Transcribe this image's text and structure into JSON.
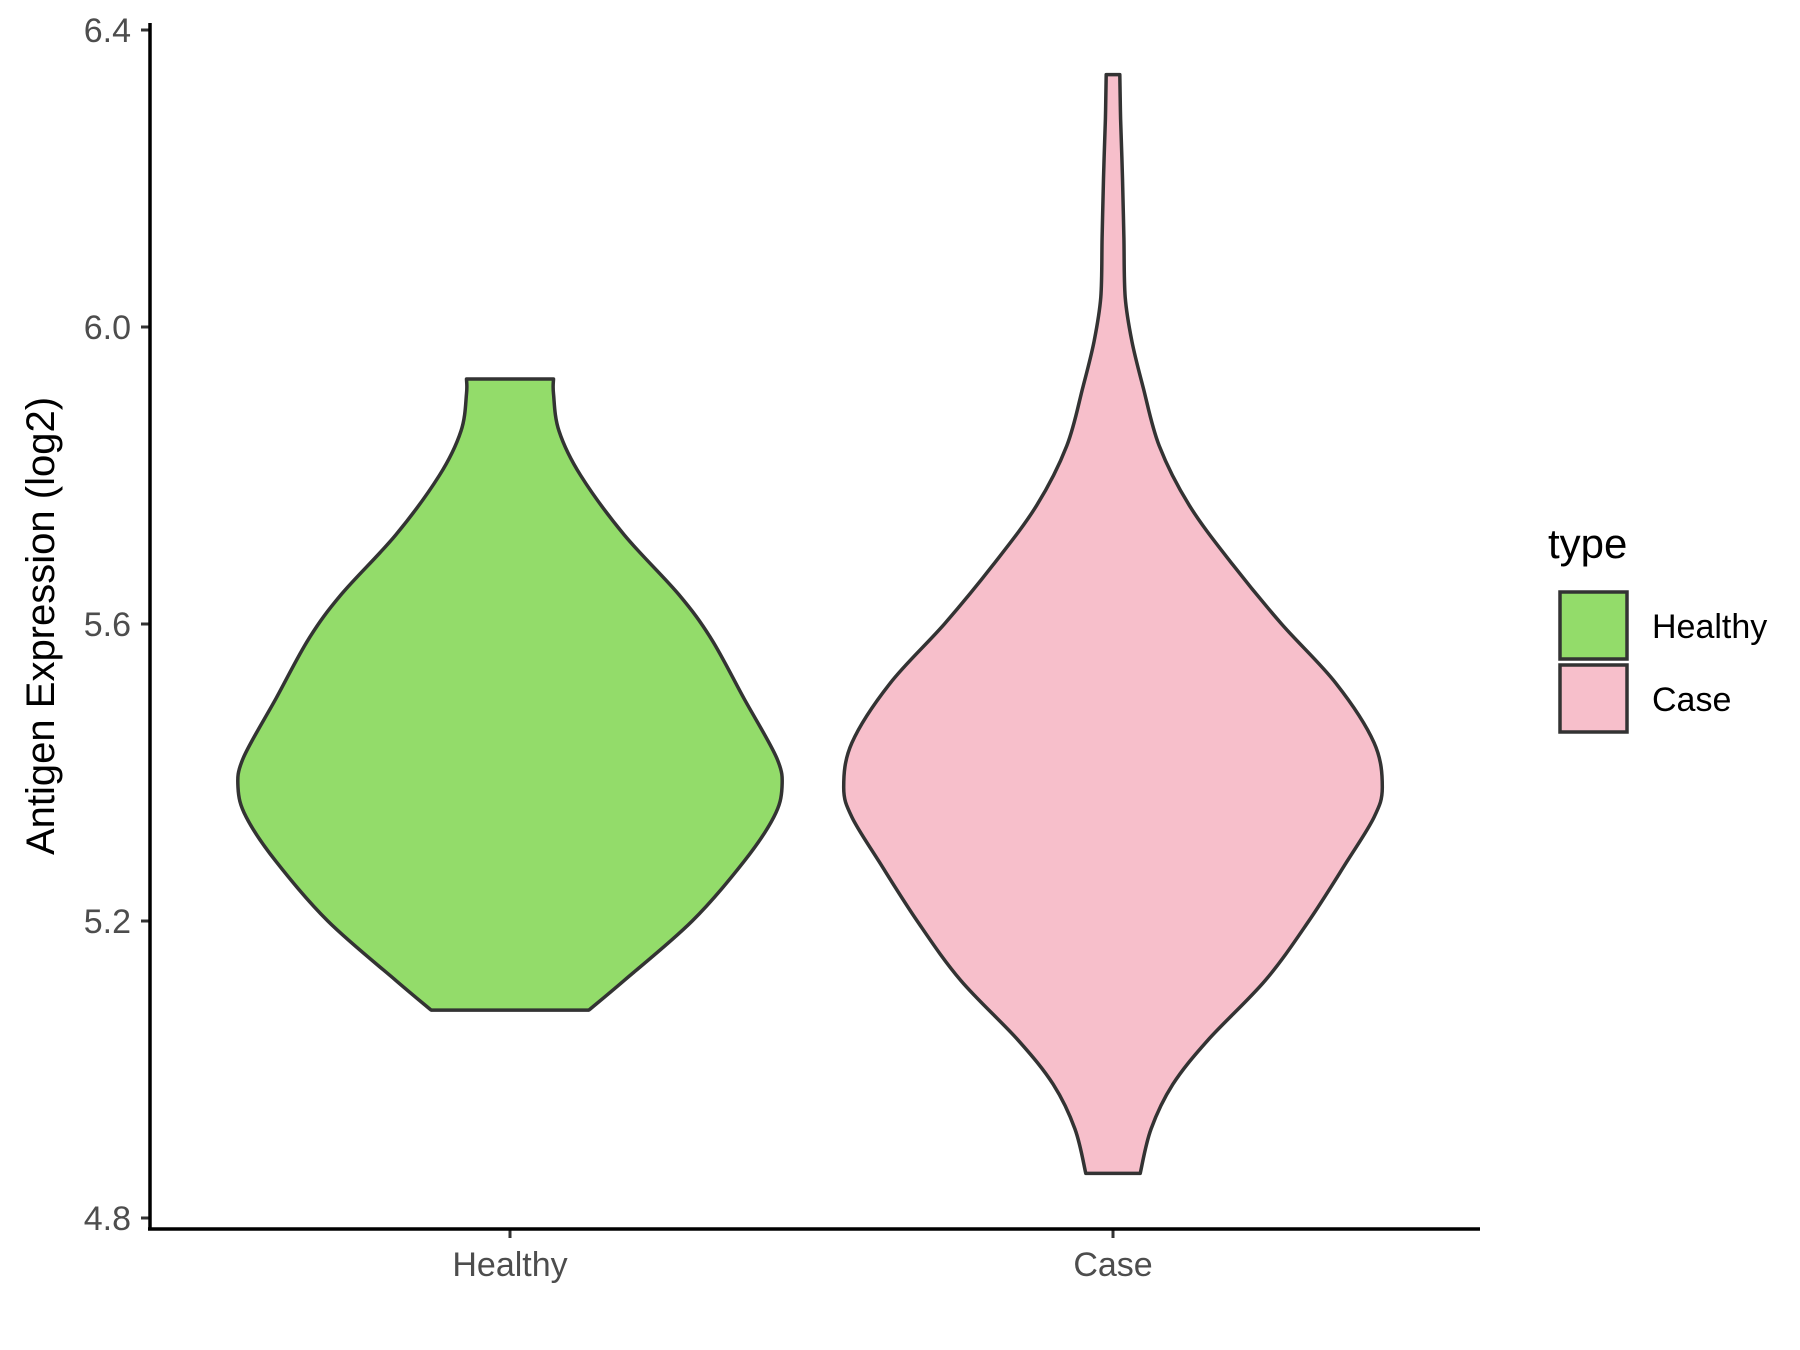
{
  "chart_data": {
    "type": "violin",
    "ylabel": "Antigen Expression (log2)",
    "xlabel": "",
    "categories": [
      "Healthy",
      "Case"
    ],
    "ylim": [
      4.8,
      6.4
    ],
    "yticks": [
      "4.8",
      "5.2",
      "5.6",
      "6.0",
      "6.4"
    ],
    "grid": false,
    "legend": {
      "title": "type",
      "position": "right",
      "items": [
        "Healthy",
        "Case"
      ]
    },
    "series": [
      {
        "category": "Healthy",
        "color": "#93DC6A",
        "ymin": 5.08,
        "ymax": 5.93,
        "density": [
          [
            5.08,
            0.29
          ],
          [
            5.12,
            0.42
          ],
          [
            5.2,
            0.67
          ],
          [
            5.28,
            0.86
          ],
          [
            5.34,
            0.97
          ],
          [
            5.38,
            1.0
          ],
          [
            5.42,
            0.98
          ],
          [
            5.5,
            0.86
          ],
          [
            5.58,
            0.74
          ],
          [
            5.64,
            0.62
          ],
          [
            5.72,
            0.42
          ],
          [
            5.8,
            0.26
          ],
          [
            5.86,
            0.18
          ],
          [
            5.91,
            0.16
          ],
          [
            5.93,
            0.16
          ]
        ]
      },
      {
        "category": "Case",
        "color": "#F7BFCB",
        "ymin": 4.86,
        "ymax": 6.34,
        "density": [
          [
            4.86,
            0.1
          ],
          [
            4.92,
            0.14
          ],
          [
            4.98,
            0.22
          ],
          [
            5.04,
            0.35
          ],
          [
            5.12,
            0.56
          ],
          [
            5.2,
            0.72
          ],
          [
            5.28,
            0.86
          ],
          [
            5.34,
            0.96
          ],
          [
            5.38,
            0.99
          ],
          [
            5.44,
            0.96
          ],
          [
            5.52,
            0.82
          ],
          [
            5.6,
            0.62
          ],
          [
            5.68,
            0.44
          ],
          [
            5.76,
            0.28
          ],
          [
            5.84,
            0.17
          ],
          [
            5.92,
            0.11
          ],
          [
            5.98,
            0.07
          ],
          [
            6.04,
            0.045
          ],
          [
            6.12,
            0.04
          ],
          [
            6.2,
            0.035
          ],
          [
            6.28,
            0.028
          ],
          [
            6.34,
            0.025
          ]
        ]
      }
    ]
  }
}
